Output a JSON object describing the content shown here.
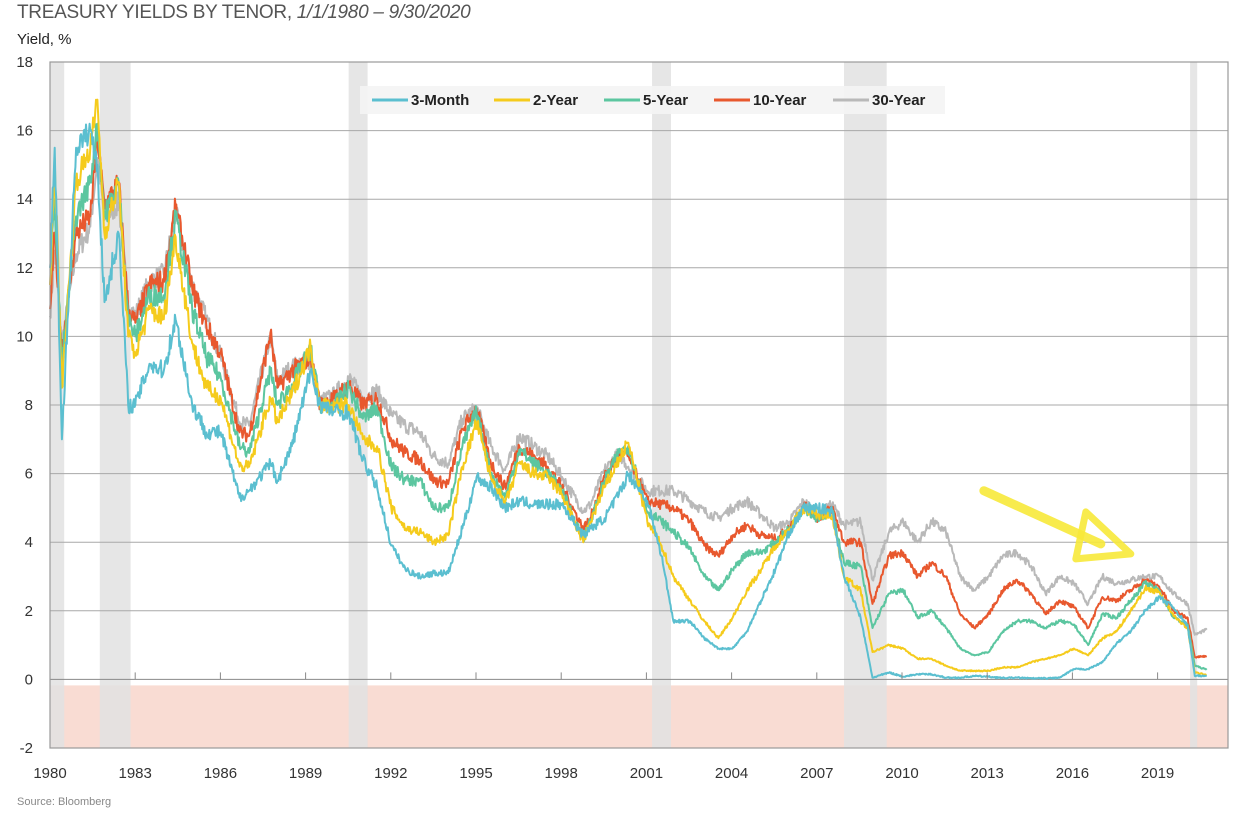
{
  "header": {
    "title": "TREASURY YIELDS BY TENOR, ",
    "subtitle": "1/1/1980 – 9/30/2020",
    "y_axis_label": "Yield, %"
  },
  "footer": {
    "source": "Source: Bloomberg"
  },
  "chart_data": {
    "type": "line",
    "title": "TREASURY YIELDS BY TENOR, 1/1/1980 – 9/30/2020",
    "ylabel": "Yield, %",
    "xlabel": "",
    "ylim": [
      -2,
      18
    ],
    "xlim": [
      "1980-01",
      "2021-06"
    ],
    "y_ticks": [
      "18",
      "16",
      "14",
      "12",
      "10",
      "8",
      "6",
      "4",
      "2",
      "0",
      "-2"
    ],
    "x_ticks": [
      "1980",
      "1983",
      "1986",
      "1989",
      "1992",
      "1995",
      "1998",
      "2001",
      "2004",
      "2007",
      "2010",
      "2013",
      "2016",
      "2019"
    ],
    "grid": true,
    "legend_position": "top-center",
    "negative_zone": {
      "range": [
        -2,
        0
      ],
      "color": "#f9dcd3"
    },
    "recession_color": "#e2e2e2",
    "recessions": [
      [
        "1980-01",
        "1980-07"
      ],
      [
        "1981-10",
        "1982-11"
      ],
      [
        "1990-07",
        "1991-03"
      ],
      [
        "2001-03",
        "2001-11"
      ],
      [
        "2007-12",
        "2009-06"
      ],
      [
        "2020-02",
        "2020-05"
      ]
    ],
    "annotation": {
      "type": "arrow",
      "color": "#f7e93a",
      "from": [
        "2012-11",
        5.5
      ],
      "to": [
        "2018-01",
        3.6
      ]
    },
    "dates": [
      "1980-01",
      "1980-03",
      "1980-06",
      "1980-12",
      "1981-06",
      "1981-09",
      "1981-12",
      "1982-06",
      "1982-10",
      "1983-01",
      "1983-07",
      "1984-01",
      "1984-06",
      "1985-01",
      "1985-07",
      "1986-01",
      "1986-09",
      "1987-01",
      "1987-10",
      "1988-01",
      "1988-07",
      "1989-03",
      "1989-07",
      "1990-01",
      "1990-07",
      "1991-01",
      "1991-07",
      "1992-01",
      "1992-07",
      "1993-01",
      "1993-07",
      "1994-01",
      "1994-07",
      "1995-01",
      "1995-07",
      "1996-01",
      "1996-07",
      "1997-01",
      "1997-07",
      "1998-01",
      "1998-10",
      "1999-01",
      "1999-07",
      "2000-01",
      "2000-05",
      "2001-01",
      "2001-07",
      "2001-12",
      "2002-07",
      "2003-01",
      "2003-07",
      "2004-01",
      "2004-07",
      "2005-01",
      "2005-07",
      "2006-01",
      "2006-07",
      "2007-01",
      "2007-07",
      "2007-12",
      "2008-07",
      "2008-12",
      "2009-07",
      "2010-01",
      "2010-07",
      "2011-01",
      "2011-07",
      "2012-01",
      "2012-07",
      "2013-01",
      "2013-07",
      "2014-01",
      "2014-07",
      "2015-01",
      "2015-07",
      "2016-01",
      "2016-07",
      "2017-01",
      "2017-07",
      "2018-01",
      "2018-07",
      "2019-01",
      "2019-07",
      "2020-01",
      "2020-04",
      "2020-09"
    ],
    "series": [
      {
        "name": "3-Month",
        "color": "#5bbfd0",
        "values": [
          12,
          15.5,
          7,
          15.5,
          16,
          15.0,
          11,
          13,
          8,
          8,
          9.2,
          9,
          10.5,
          8,
          7.2,
          7.2,
          5.3,
          5.5,
          6.3,
          5.8,
          6.8,
          9.0,
          8.0,
          7.8,
          7.8,
          6.4,
          5.6,
          3.9,
          3.2,
          3.0,
          3.1,
          3.1,
          4.4,
          5.9,
          5.6,
          5.0,
          5.2,
          5.1,
          5.1,
          5.1,
          4.2,
          4.4,
          4.7,
          5.4,
          6.0,
          5.2,
          3.6,
          1.7,
          1.7,
          1.2,
          0.9,
          0.9,
          1.4,
          2.3,
          3.2,
          4.3,
          5.0,
          5.0,
          4.9,
          3.0,
          1.8,
          0.05,
          0.2,
          0.08,
          0.15,
          0.15,
          0.05,
          0.05,
          0.1,
          0.08,
          0.04,
          0.05,
          0.03,
          0.03,
          0.05,
          0.3,
          0.3,
          0.5,
          1.05,
          1.4,
          2.0,
          2.4,
          2.1,
          1.55,
          0.1,
          0.1
        ]
      },
      {
        "name": "2-Year",
        "color": "#f5cb1c",
        "values": [
          11.5,
          15.2,
          8.5,
          14.5,
          15.5,
          16.9,
          13,
          14.5,
          10,
          9.5,
          10.8,
          10.5,
          12.9,
          9.8,
          8.5,
          8.2,
          6.2,
          6.2,
          8.2,
          7.5,
          8.3,
          9.7,
          8.0,
          8.0,
          8.0,
          7.0,
          6.8,
          5.0,
          4.4,
          4.3,
          4.0,
          4.2,
          6.2,
          7.5,
          5.9,
          5.1,
          6.3,
          6.0,
          5.9,
          5.4,
          4.0,
          4.6,
          5.6,
          6.4,
          6.9,
          4.6,
          3.9,
          3.0,
          2.3,
          1.7,
          1.2,
          1.8,
          2.6,
          3.2,
          3.9,
          4.4,
          5.0,
          4.8,
          4.8,
          3.0,
          2.6,
          0.8,
          1.0,
          0.9,
          0.6,
          0.6,
          0.4,
          0.25,
          0.25,
          0.25,
          0.35,
          0.35,
          0.5,
          0.6,
          0.7,
          0.9,
          0.7,
          1.2,
          1.4,
          2.0,
          2.65,
          2.55,
          1.85,
          1.5,
          0.2,
          0.13
        ]
      },
      {
        "name": "5-Year",
        "color": "#5cc6a0",
        "values": [
          11.8,
          14.0,
          9.2,
          13.5,
          14.5,
          16.2,
          13.5,
          14.5,
          10.5,
          10.0,
          11.2,
          11.2,
          13.5,
          10.8,
          9.4,
          8.8,
          6.8,
          6.6,
          9.0,
          8.0,
          8.6,
          9.6,
          8.0,
          8.0,
          8.5,
          7.6,
          7.9,
          6.2,
          5.8,
          5.8,
          5.0,
          5.0,
          6.8,
          7.8,
          6.0,
          5.3,
          6.7,
          6.3,
          6.0,
          5.5,
          4.1,
          4.6,
          5.8,
          6.6,
          6.8,
          4.9,
          4.6,
          4.3,
          3.8,
          3.0,
          2.6,
          3.2,
          3.7,
          3.7,
          4.0,
          4.4,
          5.0,
          4.7,
          4.9,
          3.4,
          3.3,
          1.5,
          2.5,
          2.6,
          1.8,
          2.0,
          1.5,
          0.9,
          0.7,
          0.8,
          1.4,
          1.7,
          1.7,
          1.5,
          1.7,
          1.6,
          1.0,
          1.9,
          1.8,
          2.3,
          2.8,
          2.6,
          1.8,
          1.6,
          0.4,
          0.28
        ]
      },
      {
        "name": "10-Year",
        "color": "#e8582e",
        "values": [
          10.8,
          13.0,
          9.6,
          13.0,
          13.5,
          15.8,
          13.8,
          14.5,
          10.8,
          10.4,
          11.5,
          11.6,
          13.8,
          11.4,
          10.3,
          9.5,
          7.2,
          7.1,
          10.1,
          8.5,
          9.0,
          9.4,
          8.0,
          8.2,
          8.6,
          8.0,
          8.2,
          7.0,
          6.6,
          6.4,
          5.8,
          5.7,
          7.3,
          7.9,
          6.3,
          5.6,
          6.8,
          6.5,
          6.2,
          5.6,
          4.4,
          4.7,
          5.9,
          6.6,
          6.5,
          5.2,
          5.1,
          5.0,
          4.6,
          3.9,
          3.6,
          4.2,
          4.5,
          4.2,
          4.1,
          4.4,
          5.1,
          4.7,
          5.0,
          4.0,
          4.0,
          2.2,
          3.6,
          3.7,
          3.0,
          3.4,
          3.0,
          1.9,
          1.5,
          1.9,
          2.6,
          2.9,
          2.5,
          1.9,
          2.3,
          2.1,
          1.5,
          2.4,
          2.3,
          2.6,
          2.9,
          2.7,
          2.0,
          1.8,
          0.65,
          0.68
        ]
      },
      {
        "name": "30-Year",
        "color": "#b9b9b9",
        "values": [
          10.6,
          12.5,
          9.8,
          12.4,
          13.2,
          15.2,
          13.4,
          13.9,
          10.9,
          10.6,
          11.6,
          11.8,
          13.6,
          11.5,
          10.5,
          9.4,
          7.5,
          7.4,
          10.0,
          8.7,
          9.1,
          9.3,
          8.1,
          8.3,
          8.8,
          8.2,
          8.4,
          7.7,
          7.4,
          7.2,
          6.5,
          6.3,
          7.6,
          7.9,
          6.8,
          6.1,
          7.1,
          6.8,
          6.5,
          5.9,
          4.9,
          5.1,
          6.1,
          6.6,
          6.2,
          5.5,
          5.5,
          5.5,
          5.2,
          4.9,
          4.7,
          5.0,
          5.2,
          4.8,
          4.4,
          4.6,
          5.2,
          4.8,
          5.1,
          4.5,
          4.6,
          2.9,
          4.3,
          4.6,
          4.0,
          4.6,
          4.3,
          3.0,
          2.6,
          3.0,
          3.6,
          3.7,
          3.3,
          2.5,
          3.0,
          2.8,
          2.2,
          3.0,
          2.8,
          2.9,
          3.0,
          3.0,
          2.5,
          2.2,
          1.3,
          1.45
        ]
      }
    ]
  }
}
